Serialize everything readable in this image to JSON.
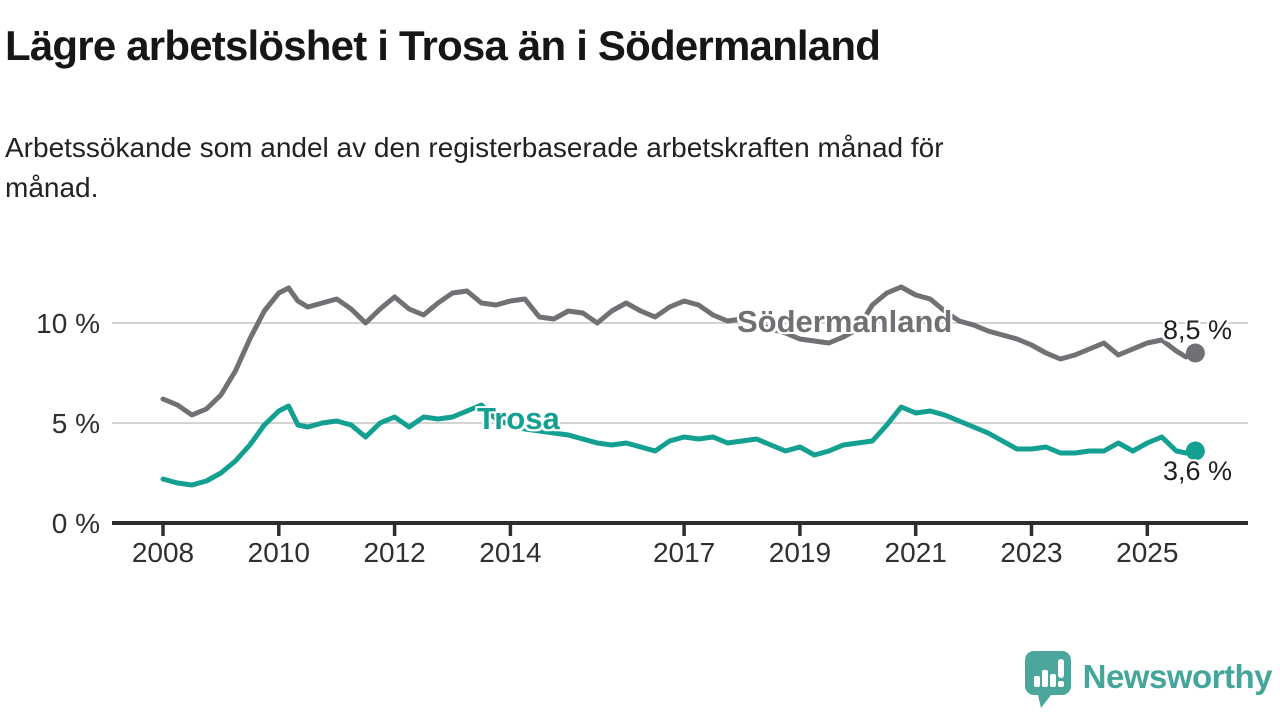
{
  "header": {
    "title": "Lägre arbetslöshet i Trosa än i Södermanland",
    "subtitle": "Arbetssökande som andel av den registerbaserade arbetskraften månad för månad."
  },
  "chart_data": {
    "type": "line",
    "title": "Lägre arbetslöshet i Trosa än i Södermanland",
    "subtitle": "Arbetssökande som andel av den registerbaserade arbetskraften månad för månad.",
    "unit": "%",
    "grid": true,
    "grid_color": "#d4d4d4",
    "axis_color": "#2e2e2e",
    "tick_label_color": "#2f2f2f",
    "xlim": [
      2007.1,
      2026.8
    ],
    "ylim": [
      0,
      12.5
    ],
    "x_ticks": [
      {
        "year": 2008,
        "label": "2008"
      },
      {
        "year": 2010,
        "label": "2010"
      },
      {
        "year": 2012,
        "label": "2012"
      },
      {
        "year": 2014,
        "label": "2014"
      },
      {
        "year": 2017,
        "label": "2017"
      },
      {
        "year": 2019,
        "label": "2019"
      },
      {
        "year": 2021,
        "label": "2021"
      },
      {
        "year": 2023,
        "label": "2023"
      },
      {
        "year": 2025,
        "label": "2025"
      }
    ],
    "y_ticks": [
      {
        "value": 0,
        "label": "0 %"
      },
      {
        "value": 5,
        "label": "5 %"
      },
      {
        "value": 10,
        "label": "10 %"
      }
    ],
    "series": [
      {
        "name": "Södermanland",
        "color": "#717175",
        "end_label": "8,5 %",
        "end_value": 8.5,
        "points": [
          [
            2008,
            6.2
          ],
          [
            2008.25,
            5.9
          ],
          [
            2008.5,
            5.4
          ],
          [
            2008.75,
            5.7
          ],
          [
            2009,
            6.4
          ],
          [
            2009.25,
            7.6
          ],
          [
            2009.5,
            9.2
          ],
          [
            2009.75,
            10.6
          ],
          [
            2010,
            11.5
          ],
          [
            2010.17,
            11.75
          ],
          [
            2010.33,
            11.1
          ],
          [
            2010.5,
            10.8
          ],
          [
            2010.75,
            11.0
          ],
          [
            2011,
            11.2
          ],
          [
            2011.25,
            10.7
          ],
          [
            2011.5,
            10.0
          ],
          [
            2011.75,
            10.7
          ],
          [
            2012,
            11.3
          ],
          [
            2012.25,
            10.7
          ],
          [
            2012.5,
            10.4
          ],
          [
            2012.75,
            11.0
          ],
          [
            2013,
            11.5
          ],
          [
            2013.25,
            11.6
          ],
          [
            2013.5,
            11.0
          ],
          [
            2013.75,
            10.9
          ],
          [
            2014,
            11.1
          ],
          [
            2014.25,
            11.2
          ],
          [
            2014.5,
            10.3
          ],
          [
            2014.75,
            10.2
          ],
          [
            2015,
            10.6
          ],
          [
            2015.25,
            10.5
          ],
          [
            2015.5,
            10.0
          ],
          [
            2015.75,
            10.6
          ],
          [
            2016,
            11.0
          ],
          [
            2016.25,
            10.6
          ],
          [
            2016.5,
            10.3
          ],
          [
            2016.75,
            10.8
          ],
          [
            2017,
            11.1
          ],
          [
            2017.25,
            10.9
          ],
          [
            2017.5,
            10.4
          ],
          [
            2017.75,
            10.1
          ],
          [
            2018,
            10.2
          ],
          [
            2018.25,
            10.0
          ],
          [
            2018.5,
            9.7
          ],
          [
            2018.75,
            9.5
          ],
          [
            2019,
            9.2
          ],
          [
            2019.25,
            9.1
          ],
          [
            2019.5,
            9.0
          ],
          [
            2019.75,
            9.3
          ],
          [
            2020,
            9.7
          ],
          [
            2020.25,
            10.9
          ],
          [
            2020.5,
            11.5
          ],
          [
            2020.75,
            11.8
          ],
          [
            2021,
            11.4
          ],
          [
            2021.25,
            11.2
          ],
          [
            2021.5,
            10.6
          ],
          [
            2021.75,
            10.1
          ],
          [
            2022,
            9.9
          ],
          [
            2022.25,
            9.6
          ],
          [
            2022.5,
            9.4
          ],
          [
            2022.75,
            9.2
          ],
          [
            2023,
            8.9
          ],
          [
            2023.25,
            8.5
          ],
          [
            2023.5,
            8.2
          ],
          [
            2023.75,
            8.4
          ],
          [
            2024,
            8.7
          ],
          [
            2024.25,
            9.0
          ],
          [
            2024.5,
            8.4
          ],
          [
            2024.75,
            8.7
          ],
          [
            2025,
            9.0
          ],
          [
            2025.25,
            9.15
          ],
          [
            2025.5,
            8.6
          ],
          [
            2025.67,
            8.3
          ],
          [
            2025.83,
            8.5
          ]
        ]
      },
      {
        "name": "Trosa",
        "color": "#13a091",
        "end_label": "3,6 %",
        "end_value": 3.6,
        "points": [
          [
            2008,
            2.2
          ],
          [
            2008.25,
            2.0
          ],
          [
            2008.5,
            1.9
          ],
          [
            2008.75,
            2.1
          ],
          [
            2009,
            2.5
          ],
          [
            2009.25,
            3.1
          ],
          [
            2009.5,
            3.9
          ],
          [
            2009.75,
            4.9
          ],
          [
            2010,
            5.6
          ],
          [
            2010.17,
            5.85
          ],
          [
            2010.33,
            4.9
          ],
          [
            2010.5,
            4.8
          ],
          [
            2010.75,
            5.0
          ],
          [
            2011,
            5.1
          ],
          [
            2011.25,
            4.9
          ],
          [
            2011.5,
            4.3
          ],
          [
            2011.75,
            5.0
          ],
          [
            2012,
            5.3
          ],
          [
            2012.25,
            4.8
          ],
          [
            2012.5,
            5.3
          ],
          [
            2012.75,
            5.2
          ],
          [
            2013,
            5.3
          ],
          [
            2013.25,
            5.6
          ],
          [
            2013.5,
            5.9
          ],
          [
            2013.75,
            5.2
          ],
          [
            2014,
            4.9
          ],
          [
            2014.25,
            4.7
          ],
          [
            2014.5,
            4.6
          ],
          [
            2014.75,
            4.5
          ],
          [
            2015,
            4.4
          ],
          [
            2015.25,
            4.2
          ],
          [
            2015.5,
            4.0
          ],
          [
            2015.75,
            3.9
          ],
          [
            2016,
            4.0
          ],
          [
            2016.25,
            3.8
          ],
          [
            2016.5,
            3.6
          ],
          [
            2016.75,
            4.1
          ],
          [
            2017,
            4.3
          ],
          [
            2017.25,
            4.2
          ],
          [
            2017.5,
            4.3
          ],
          [
            2017.75,
            4.0
          ],
          [
            2018,
            4.1
          ],
          [
            2018.25,
            4.2
          ],
          [
            2018.5,
            3.9
          ],
          [
            2018.75,
            3.6
          ],
          [
            2019,
            3.8
          ],
          [
            2019.25,
            3.4
          ],
          [
            2019.5,
            3.6
          ],
          [
            2019.75,
            3.9
          ],
          [
            2020,
            4.0
          ],
          [
            2020.25,
            4.1
          ],
          [
            2020.5,
            4.9
          ],
          [
            2020.75,
            5.8
          ],
          [
            2021,
            5.5
          ],
          [
            2021.25,
            5.6
          ],
          [
            2021.5,
            5.4
          ],
          [
            2021.75,
            5.1
          ],
          [
            2022,
            4.8
          ],
          [
            2022.25,
            4.5
          ],
          [
            2022.5,
            4.1
          ],
          [
            2022.75,
            3.7
          ],
          [
            2023,
            3.7
          ],
          [
            2023.25,
            3.8
          ],
          [
            2023.5,
            3.5
          ],
          [
            2023.75,
            3.5
          ],
          [
            2024,
            3.6
          ],
          [
            2024.25,
            3.6
          ],
          [
            2024.5,
            4.0
          ],
          [
            2024.75,
            3.6
          ],
          [
            2025,
            4.0
          ],
          [
            2025.25,
            4.3
          ],
          [
            2025.5,
            3.6
          ],
          [
            2025.67,
            3.5
          ],
          [
            2025.83,
            3.6
          ]
        ]
      }
    ]
  },
  "branding": {
    "name": "Newsworthy",
    "logo_color": "#4ba69c",
    "text_color": "#44a69a"
  }
}
